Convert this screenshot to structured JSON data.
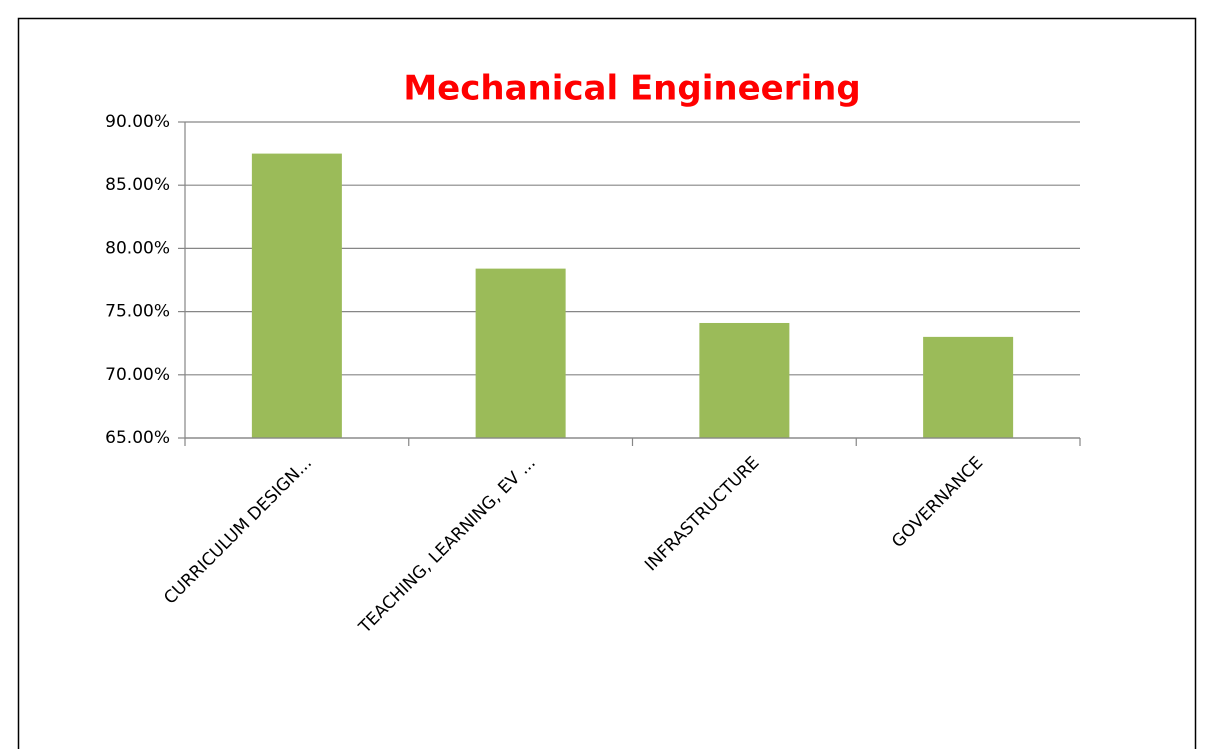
{
  "chart_data": {
    "type": "bar",
    "title": "Mechanical Engineering",
    "categories": [
      "CURRICULUM DESIGN...",
      "TEACHING, LEARNING, EV ...",
      "INFRASTRUCTURE",
      "GOVERNANCE"
    ],
    "values": [
      87.5,
      78.4,
      74.1,
      73.0
    ],
    "color": "#9bbb59",
    "ylim": [
      65,
      90
    ],
    "yticks": [
      {
        "value": 65,
        "label": "65.00%"
      },
      {
        "value": 70,
        "label": "70.00%"
      },
      {
        "value": 75,
        "label": "75.00%"
      },
      {
        "value": 80,
        "label": "80.00%"
      },
      {
        "value": 85,
        "label": "85.00%"
      },
      {
        "value": 90,
        "label": "90.00%"
      }
    ],
    "grid": true
  }
}
